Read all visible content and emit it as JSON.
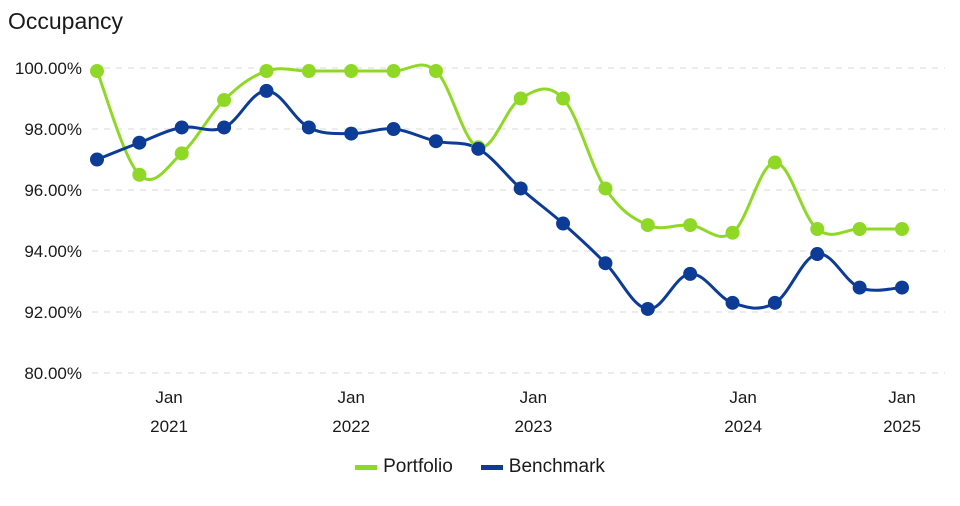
{
  "chart_data": {
    "type": "line",
    "title": "Occupancy",
    "y_tick_labels": [
      "100.00%",
      "98.00%",
      "96.00%",
      "94.00%",
      "92.00%",
      "80.00%"
    ],
    "x_tick_labels": [
      {
        "month": "Jan",
        "year": "2021",
        "index": 1.7
      },
      {
        "month": "Jan",
        "year": "2022",
        "index": 6.0
      },
      {
        "month": "Jan",
        "year": "2023",
        "index": 10.3
      },
      {
        "month": "Jan",
        "year": "2024",
        "index": 15.25
      },
      {
        "month": "Jan",
        "year": "2025",
        "index": 19.0
      }
    ],
    "series": [
      {
        "name": "Portfolio",
        "color": "#8fd826",
        "values": [
          99.9,
          96.5,
          97.2,
          98.95,
          99.9,
          99.9,
          99.9,
          99.9,
          99.9,
          97.4,
          99.0,
          99.0,
          96.05,
          94.85,
          94.85,
          94.6,
          96.9,
          94.72,
          94.72,
          94.72
        ]
      },
      {
        "name": "Benchmark",
        "color": "#0d3c96",
        "values": [
          97.0,
          97.55,
          98.05,
          98.05,
          99.25,
          98.05,
          97.85,
          98.0,
          97.6,
          97.35,
          96.05,
          94.9,
          93.6,
          92.1,
          93.25,
          92.3,
          92.3,
          93.9,
          92.8,
          92.8
        ]
      }
    ]
  }
}
